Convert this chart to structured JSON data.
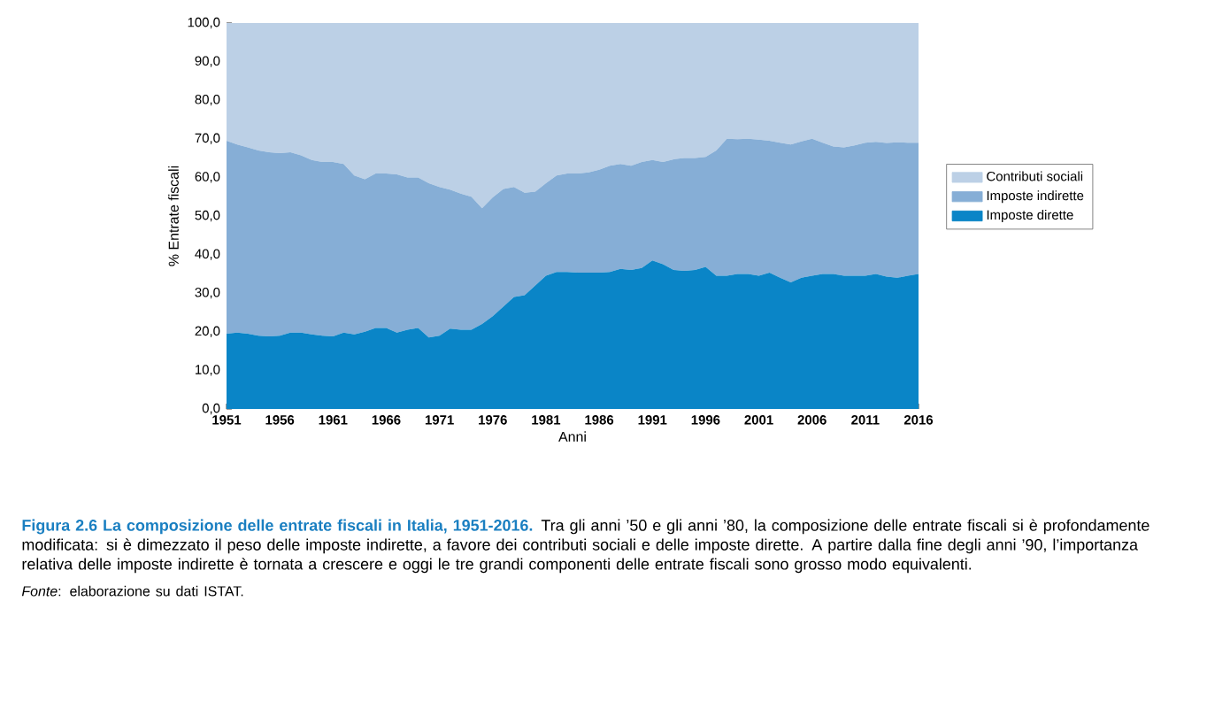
{
  "chart_data": {
    "type": "area",
    "stacked": true,
    "title": "Figura 2.6  La composizione delle entrate fiscali in Italia, 1951-2016.",
    "xlabel": "Anni",
    "ylabel": "% Entrate fiscali",
    "annotations": [
      "Tra gli anni ’50 e gli anni ’80, la composizione delle entrate fiscali si è profondamente modificata: si è dimezzato il peso delle imposte indirette, a favore dei contributi sociali e delle imposte dirette. A partire dalla fine degli anni ’90, l’importanza relativa delle imposte indirette è tornata a crescere e oggi le tre grandi componenti delle entrate fiscali sono grosso modo equivalenti.",
      "*Fonte*: elaborazione su dati ISTAT."
    ],
    "x": [
      1951,
      1952,
      1953,
      1954,
      1955,
      1956,
      1957,
      1958,
      1959,
      1960,
      1961,
      1962,
      1963,
      1964,
      1965,
      1966,
      1967,
      1968,
      1969,
      1970,
      1971,
      1972,
      1973,
      1974,
      1975,
      1976,
      1977,
      1978,
      1979,
      1980,
      1981,
      1982,
      1983,
      1984,
      1985,
      1986,
      1987,
      1988,
      1989,
      1990,
      1991,
      1992,
      1993,
      1994,
      1995,
      1996,
      1997,
      1998,
      1999,
      2000,
      2001,
      2002,
      2003,
      2004,
      2005,
      2006,
      2007,
      2008,
      2009,
      2010,
      2011,
      2012,
      2013,
      2014,
      2015,
      2016
    ],
    "series": [
      {
        "name": "Imposte dirette",
        "color": "#0a85c7",
        "values": [
          19.5,
          19.8,
          19.5,
          19,
          18.8,
          19,
          19.8,
          19.8,
          19.3,
          19,
          18.8,
          19.8,
          19.3,
          20,
          21,
          21,
          19.8,
          20.5,
          21,
          18.5,
          19,
          20.8,
          20.5,
          20.5,
          22,
          24,
          26.5,
          29,
          29.5,
          32,
          34.5,
          35.5,
          35.5,
          35.3,
          35.3,
          35.3,
          35.5,
          36.3,
          36,
          36.5,
          38.5,
          37.5,
          36,
          35.8,
          36,
          36.8,
          34.5,
          34.5,
          35,
          35,
          34.5,
          35.3,
          34,
          32.8,
          34,
          34.5,
          35,
          35,
          34.5,
          34.5,
          34.5,
          35,
          34.3,
          34,
          34.5,
          35
        ]
      },
      {
        "name": "Imposte indirette",
        "color": "#86aed6",
        "values": [
          50,
          48.7,
          48.3,
          48,
          47.7,
          47.3,
          46.7,
          45.9,
          45.2,
          45,
          45.2,
          43.7,
          41.2,
          39.5,
          40,
          40,
          41,
          39.5,
          39,
          40,
          38.5,
          36,
          35.3,
          34.5,
          30,
          30.8,
          30.5,
          28.5,
          26.5,
          24.3,
          24,
          25,
          25.5,
          25.7,
          26,
          26.7,
          27.5,
          27.2,
          27,
          27.5,
          26,
          26.5,
          28.7,
          29.2,
          29,
          28.5,
          32.5,
          35.5,
          34.9,
          35,
          35.3,
          34.2,
          35,
          35.7,
          35.3,
          35.5,
          34,
          33,
          33.3,
          33.8,
          34.5,
          34.2,
          34.6,
          35.1,
          34.5,
          34
        ]
      },
      {
        "name": "Contributi sociali",
        "color": "#bcd0e6",
        "values": [
          30.5,
          31.5,
          32.2,
          33,
          33.5,
          33.7,
          33.5,
          34.3,
          35.5,
          36,
          36,
          36.5,
          39.5,
          40.5,
          39,
          39,
          39.2,
          40,
          40,
          41.5,
          42.5,
          43.2,
          44.2,
          45,
          48,
          45.2,
          43,
          42.5,
          44,
          43.7,
          41.5,
          39.5,
          39,
          39,
          38.7,
          38,
          37,
          36.5,
          37,
          36,
          35.5,
          36,
          35.3,
          35,
          35,
          34.7,
          33,
          30,
          30.1,
          30,
          30.2,
          30.5,
          31,
          31.5,
          30.7,
          30,
          31,
          32,
          32.2,
          31.7,
          31,
          30.8,
          31.1,
          30.9,
          31.0,
          31
        ]
      }
    ],
    "xlim": [
      1951,
      2016
    ],
    "ylim": [
      0,
      100
    ],
    "xticks": [
      1951,
      1956,
      1961,
      1966,
      1971,
      1976,
      1981,
      1986,
      1991,
      1996,
      2001,
      2006,
      2011,
      2016
    ],
    "yticks": [
      {
        "value": 0,
        "label": "0,0"
      },
      {
        "value": 10,
        "label": "10,0"
      },
      {
        "value": 20,
        "label": "20,0"
      },
      {
        "value": 30,
        "label": "30,0"
      },
      {
        "value": 40,
        "label": "40,0"
      },
      {
        "value": 50,
        "label": "50,0"
      },
      {
        "value": 60,
        "label": "60,0"
      },
      {
        "value": 70,
        "label": "70,0"
      },
      {
        "value": 80,
        "label": "80,0"
      },
      {
        "value": 90,
        "label": "90,0"
      },
      {
        "value": 100,
        "label": "100,0"
      }
    ],
    "legend": "right"
  }
}
